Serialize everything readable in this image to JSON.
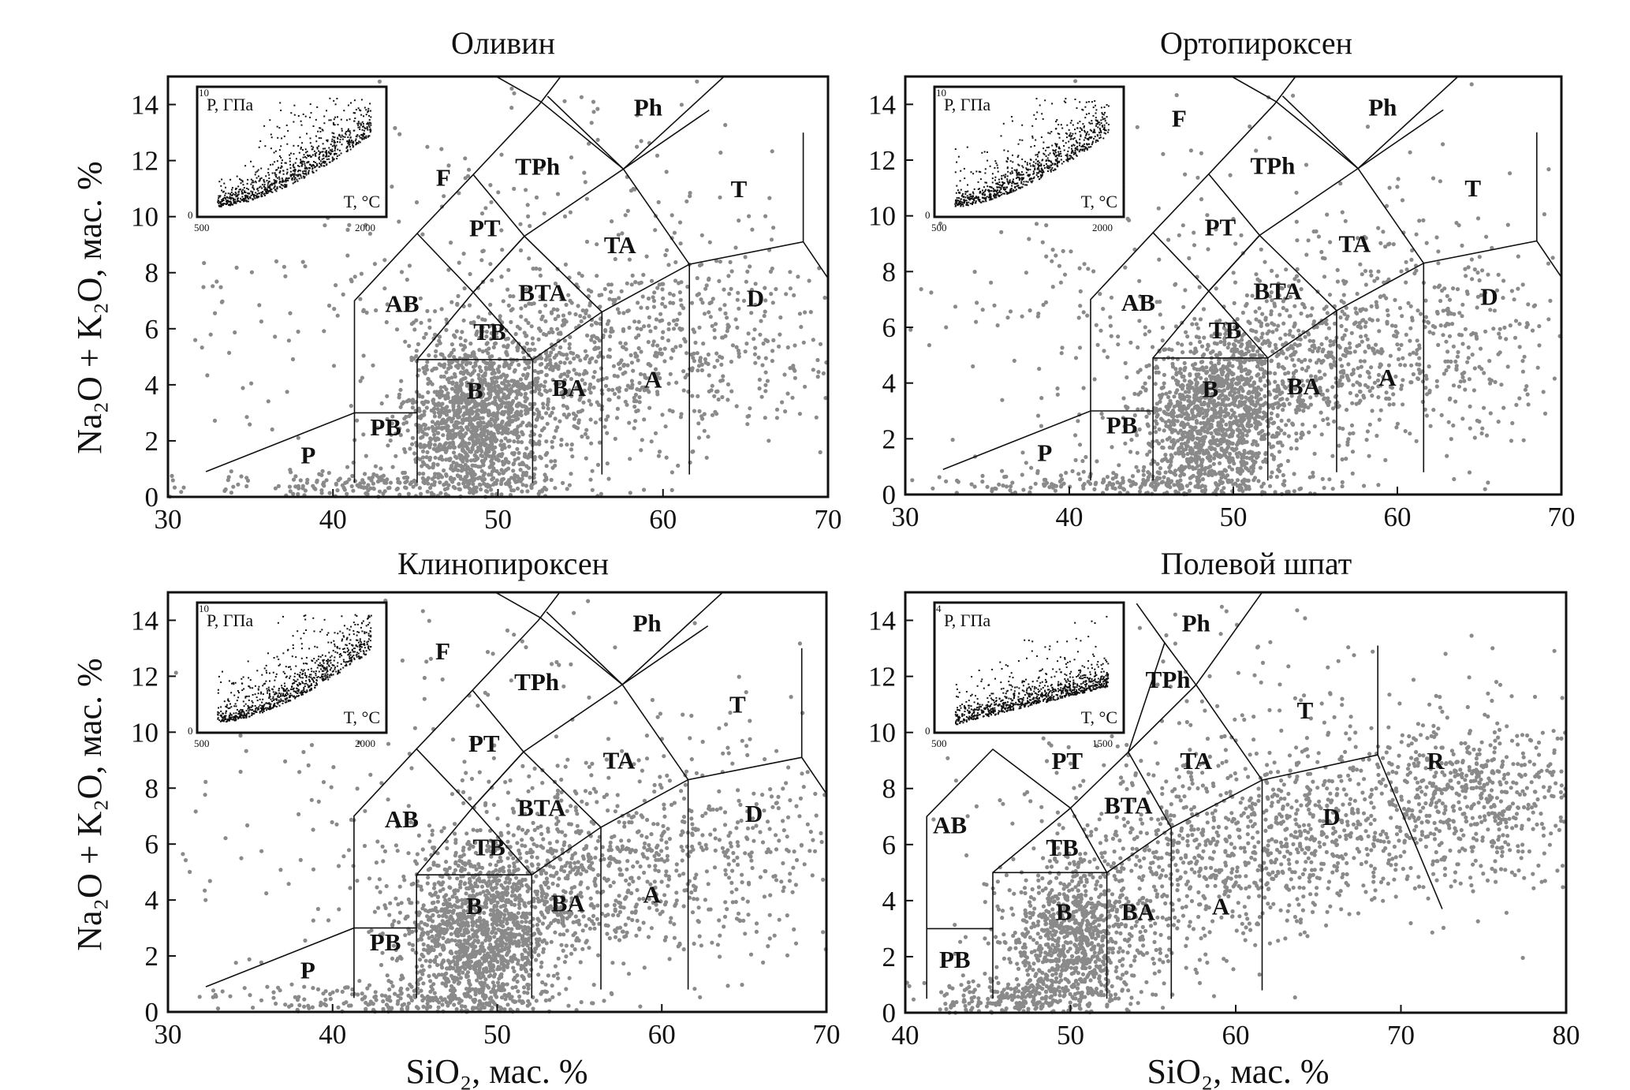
{
  "x_axis_label": "SiO₂, мас. %",
  "y_axis_label": "Na₂O + K₂O, мас. %",
  "colors": {
    "points": "#8a8a8a",
    "lines": "#111111",
    "inset_points": "#111111"
  },
  "chart_data": [
    {
      "type": "scatter",
      "title": "Оливин",
      "xlim": [
        30,
        70
      ],
      "ylim": [
        0,
        15
      ],
      "xticks": [
        30,
        40,
        50,
        60,
        70
      ],
      "yticks": [
        0,
        2,
        4,
        6,
        8,
        10,
        12,
        14
      ],
      "zones": [
        {
          "label": "P",
          "x": 38.5,
          "y": 1.2
        },
        {
          "label": "PB",
          "x": 43.2,
          "y": 2.2
        },
        {
          "label": "B",
          "x": 48.6,
          "y": 3.5
        },
        {
          "label": "BA",
          "x": 54.3,
          "y": 3.6
        },
        {
          "label": "A",
          "x": 59.4,
          "y": 3.9
        },
        {
          "label": "D",
          "x": 65.6,
          "y": 6.8
        },
        {
          "label": "T",
          "x": 64.6,
          "y": 10.7
        },
        {
          "label": "Ph",
          "x": 59.1,
          "y": 13.6
        },
        {
          "label": "TPh",
          "x": 52.4,
          "y": 11.5
        },
        {
          "label": "F",
          "x": 46.7,
          "y": 11.1
        },
        {
          "label": "PT",
          "x": 49.2,
          "y": 9.3
        },
        {
          "label": "TA",
          "x": 57.4,
          "y": 8.7
        },
        {
          "label": "BTA",
          "x": 52.7,
          "y": 7.0
        },
        {
          "label": "TB",
          "x": 49.5,
          "y": 5.6
        },
        {
          "label": "AB",
          "x": 44.2,
          "y": 6.6
        }
      ],
      "inset": {
        "ylabel": "P, ГПа",
        "xlabel": "T, °C",
        "x_min": "500",
        "x_max": "2000",
        "y_min": "0",
        "y_max": "10"
      }
    },
    {
      "type": "scatter",
      "title": "Ортопироксен",
      "xlim": [
        30,
        70
      ],
      "ylim": [
        0,
        15
      ],
      "xticks": [
        30,
        40,
        50,
        60,
        70
      ],
      "yticks": [
        0,
        2,
        4,
        6,
        8,
        10,
        12,
        14
      ],
      "zones": [
        {
          "label": "P",
          "x": 38.5,
          "y": 1.2
        },
        {
          "label": "PB",
          "x": 43.2,
          "y": 2.2
        },
        {
          "label": "B",
          "x": 48.6,
          "y": 3.5
        },
        {
          "label": "BA",
          "x": 54.3,
          "y": 3.6
        },
        {
          "label": "A",
          "x": 59.4,
          "y": 3.9
        },
        {
          "label": "D",
          "x": 65.6,
          "y": 6.8
        },
        {
          "label": "T",
          "x": 64.6,
          "y": 10.7
        },
        {
          "label": "Ph",
          "x": 59.1,
          "y": 13.6
        },
        {
          "label": "TPh",
          "x": 52.4,
          "y": 11.5
        },
        {
          "label": "F",
          "x": 46.7,
          "y": 13.2
        },
        {
          "label": "PT",
          "x": 49.2,
          "y": 9.3
        },
        {
          "label": "TA",
          "x": 57.4,
          "y": 8.7
        },
        {
          "label": "BTA",
          "x": 52.7,
          "y": 7.0
        },
        {
          "label": "TB",
          "x": 49.5,
          "y": 5.6
        },
        {
          "label": "AB",
          "x": 44.2,
          "y": 6.6
        }
      ],
      "inset": {
        "ylabel": "P, ГПа",
        "xlabel": "T, °C",
        "x_min": "500",
        "x_max": "2000",
        "y_min": "0",
        "y_max": "10"
      }
    },
    {
      "type": "scatter",
      "title": "Клинопироксен",
      "xlim": [
        30,
        70
      ],
      "ylim": [
        0,
        15
      ],
      "xticks": [
        30,
        40,
        50,
        60,
        70
      ],
      "yticks": [
        0,
        2,
        4,
        6,
        8,
        10,
        12,
        14
      ],
      "zones": [
        {
          "label": "P",
          "x": 38.5,
          "y": 1.2
        },
        {
          "label": "PB",
          "x": 43.2,
          "y": 2.2
        },
        {
          "label": "B",
          "x": 48.6,
          "y": 3.5
        },
        {
          "label": "BA",
          "x": 54.3,
          "y": 3.6
        },
        {
          "label": "A",
          "x": 59.4,
          "y": 3.9
        },
        {
          "label": "D",
          "x": 65.6,
          "y": 6.8
        },
        {
          "label": "T",
          "x": 64.6,
          "y": 10.7
        },
        {
          "label": "Ph",
          "x": 59.1,
          "y": 13.6
        },
        {
          "label": "TPh",
          "x": 52.4,
          "y": 11.5
        },
        {
          "label": "F",
          "x": 46.7,
          "y": 12.6
        },
        {
          "label": "PT",
          "x": 49.2,
          "y": 9.3
        },
        {
          "label": "TA",
          "x": 57.4,
          "y": 8.7
        },
        {
          "label": "BTA",
          "x": 52.7,
          "y": 7.0
        },
        {
          "label": "TB",
          "x": 49.5,
          "y": 5.6
        },
        {
          "label": "AB",
          "x": 44.2,
          "y": 6.6
        }
      ],
      "inset": {
        "ylabel": "P, ГПа",
        "xlabel": "T, °C",
        "x_min": "500",
        "x_max": "2000",
        "y_min": "0",
        "y_max": "10"
      }
    },
    {
      "type": "scatter",
      "title": "Полевой шпат",
      "xlim": [
        40,
        80
      ],
      "ylim": [
        0,
        15
      ],
      "xticks": [
        40,
        50,
        60,
        70,
        80
      ],
      "yticks": [
        0,
        2,
        4,
        6,
        8,
        10,
        12,
        14
      ],
      "zones": [
        {
          "label": "PB",
          "x": 43.0,
          "y": 1.6
        },
        {
          "label": "B",
          "x": 49.6,
          "y": 3.3
        },
        {
          "label": "BA",
          "x": 54.1,
          "y": 3.3
        },
        {
          "label": "A",
          "x": 59.1,
          "y": 3.5
        },
        {
          "label": "D",
          "x": 65.8,
          "y": 6.7
        },
        {
          "label": "R",
          "x": 72.1,
          "y": 8.7
        },
        {
          "label": "T",
          "x": 64.2,
          "y": 10.5
        },
        {
          "label": "Ph",
          "x": 57.6,
          "y": 13.6
        },
        {
          "label": "TPh",
          "x": 55.9,
          "y": 11.6
        },
        {
          "label": "PT",
          "x": 49.8,
          "y": 8.7
        },
        {
          "label": "TA",
          "x": 57.6,
          "y": 8.7
        },
        {
          "label": "BTA",
          "x": 53.5,
          "y": 7.1
        },
        {
          "label": "TB",
          "x": 49.5,
          "y": 5.6
        },
        {
          "label": "AB",
          "x": 42.7,
          "y": 6.4
        }
      ],
      "inset": {
        "ylabel": "P, ГПа",
        "xlabel": "T, °C",
        "x_min": "500",
        "x_max": "1500",
        "y_min": "0",
        "y_max": "4"
      }
    }
  ]
}
